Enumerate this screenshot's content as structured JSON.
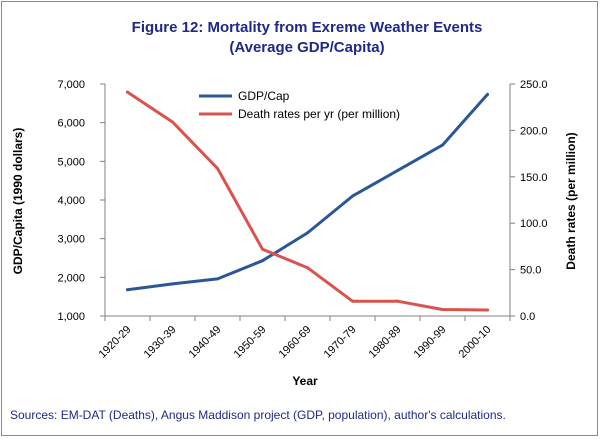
{
  "chart_data": {
    "type": "line",
    "title": "Figure 12: Mortality from Exreme Weather Events",
    "subtitle": "(Average GDP/Capita)",
    "xlabel": "Year",
    "ylabel_left": "GDP/Capita (1990 dollars)",
    "ylabel_right": "Death rates (per million)",
    "categories": [
      "1920-29",
      "1930-39",
      "1940-49",
      "1950-59",
      "1960-69",
      "1970-79",
      "1980-89",
      "1990-99",
      "2000-10"
    ],
    "series": [
      {
        "name": "GDP/Cap",
        "axis": "left",
        "color": "#2b5797",
        "values": [
          1680,
          1830,
          1960,
          2430,
          3150,
          4100,
          4760,
          5420,
          6730
        ]
      },
      {
        "name": "Death rates per yr (per million)",
        "axis": "right",
        "color": "#d9534f",
        "values": [
          241.3,
          209.0,
          159.0,
          72.0,
          52.0,
          16.0,
          16.0,
          7.0,
          6.5
        ]
      }
    ],
    "ylim_left": [
      1000,
      7000
    ],
    "yticks_left": [
      "1,000",
      "2,000",
      "3,000",
      "4,000",
      "5,000",
      "6,000",
      "7,000"
    ],
    "ylim_right": [
      0,
      250
    ],
    "yticks_right": [
      "0.0",
      "50.0",
      "100.0",
      "150.0",
      "200.0",
      "250.0"
    ],
    "grid": false,
    "legend_position": "top-center"
  },
  "source_text": "Sources: EM-DAT (Deaths), Angus Maddison project (GDP, population), author's calculations."
}
